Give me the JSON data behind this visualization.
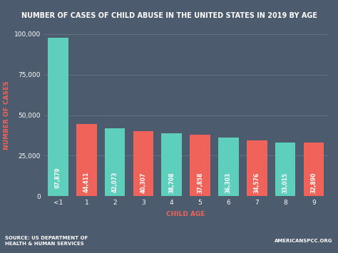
{
  "title": "NUMBER OF CASES OF CHILD ABUSE IN THE UNITED STATES IN 2019 BY AGE",
  "xlabel": "CHILD AGE",
  "ylabel": "NUMBER OF CASES",
  "categories": [
    "<1",
    "1",
    "2",
    "3",
    "4",
    "5",
    "6",
    "7",
    "8",
    "9"
  ],
  "values": [
    97879,
    44411,
    42073,
    40307,
    38708,
    37858,
    36303,
    34576,
    33015,
    32890
  ],
  "bar_colors": [
    "#5ecfbc",
    "#f0635a",
    "#5ecfbc",
    "#f0635a",
    "#5ecfbc",
    "#f0635a",
    "#5ecfbc",
    "#f0635a",
    "#5ecfbc",
    "#f0635a"
  ],
  "background_color": "#4d5b6e",
  "plot_bg_color": "#4d5b6e",
  "title_color": "#ffffff",
  "xlabel_color": "#f0635a",
  "ylabel_color": "#f0635a",
  "tick_color": "#ffffff",
  "label_color": "#ffffff",
  "footer_bg_color": "#5ecfbc",
  "footer_text_left": "SOURCE: US DEPARTMENT OF\nHEALTH & HUMAN SERVICES",
  "footer_text_right": "AMERICANSPCC.ORG",
  "ylim": [
    0,
    100000
  ],
  "yticks": [
    0,
    25000,
    50000,
    75000,
    100000
  ],
  "value_label_fontsize": 5.5,
  "title_fontsize": 7.0,
  "axis_label_fontsize": 6.5,
  "tick_fontsize": 6.5,
  "footer_fontsize": 5.0
}
